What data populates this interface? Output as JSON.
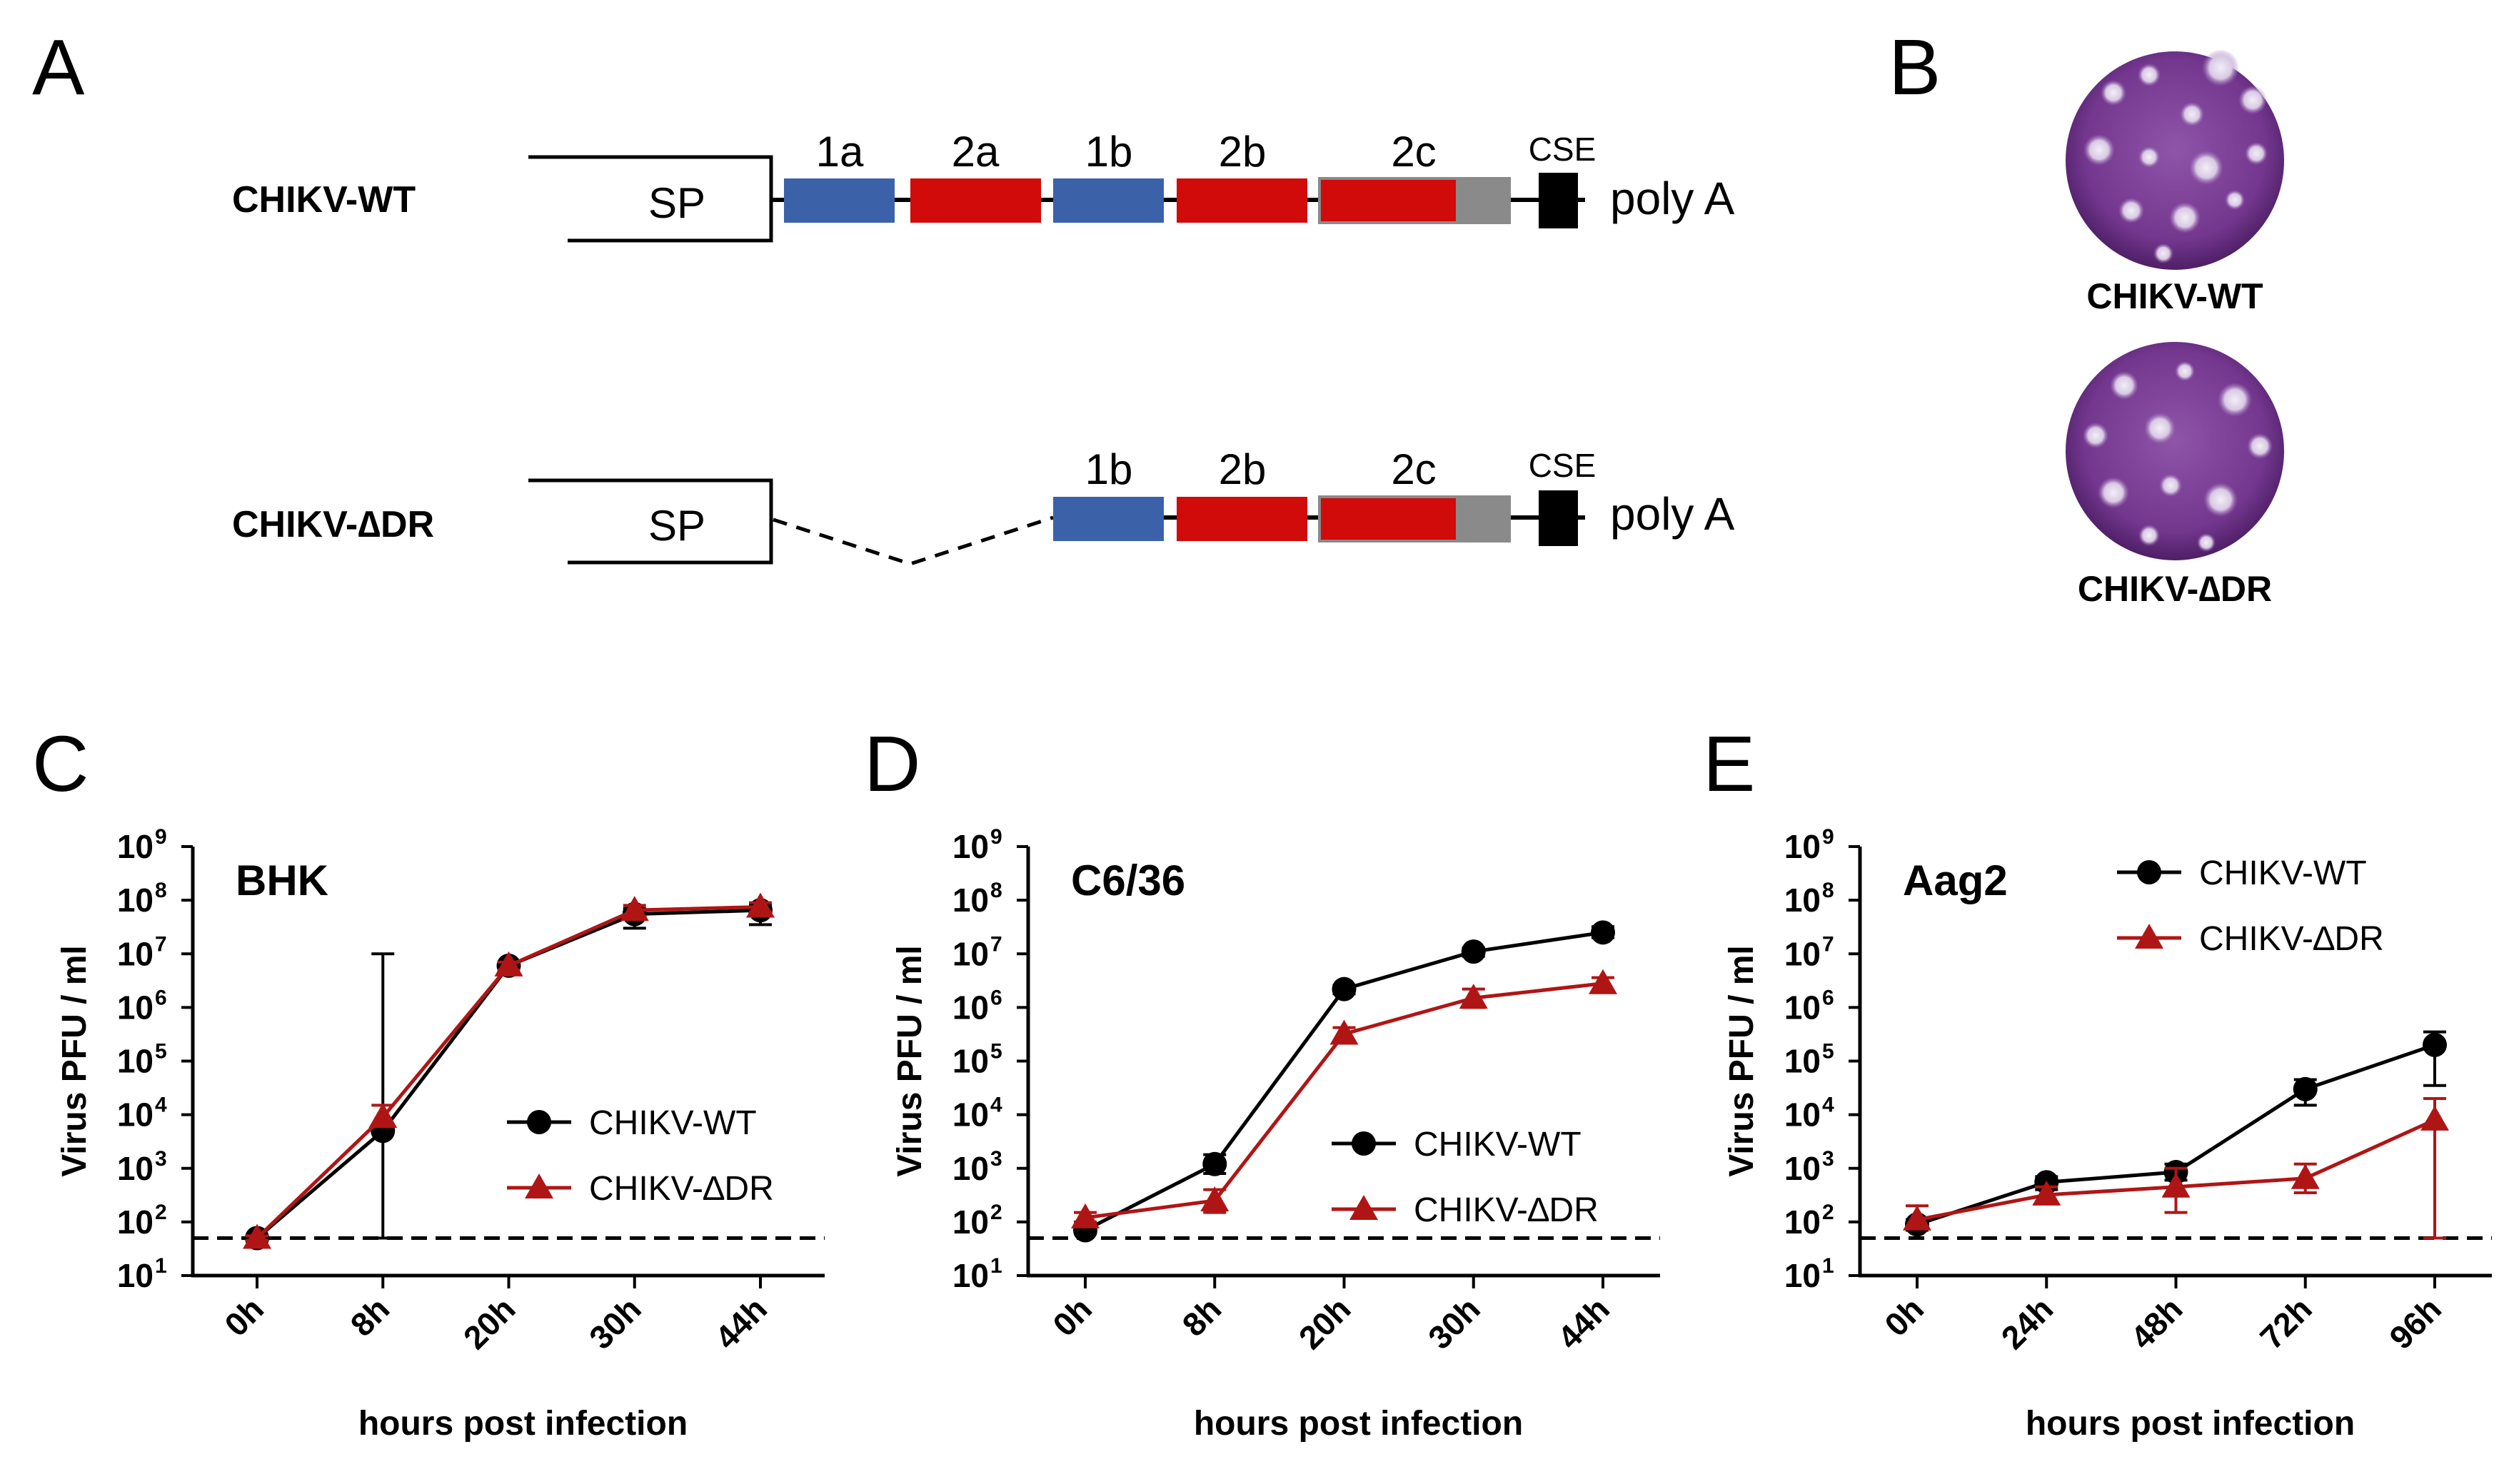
{
  "panels": {
    "A": {
      "letter": "A"
    },
    "B": {
      "letter": "B"
    },
    "C": {
      "letter": "C"
    },
    "D": {
      "letter": "D"
    },
    "E": {
      "letter": "E"
    }
  },
  "diagram": {
    "constructs": [
      {
        "label": "CHIKV-WT",
        "promoter": "SP",
        "elements": [
          {
            "label": "1a",
            "color": "#3b62a9"
          },
          {
            "label": "2a",
            "color": "#d10a0a"
          },
          {
            "label": "1b",
            "color": "#3b62a9"
          },
          {
            "label": "2b",
            "color": "#d10a0a"
          },
          {
            "label": "2c",
            "color": "#d10a0a"
          }
        ],
        "cse": "CSE",
        "tail": "poly A"
      },
      {
        "label": "CHIKV-∆DR",
        "promoter": "SP",
        "elements": [
          {
            "label": "1b",
            "color": "#3b62a9"
          },
          {
            "label": "2b",
            "color": "#d10a0a"
          },
          {
            "label": "2c",
            "color": "#d10a0a"
          }
        ],
        "cse": "CSE",
        "tail": "poly A"
      }
    ],
    "colors": {
      "blue": "#3b62a9",
      "red": "#d10a0a",
      "grey": "#8a8a8a",
      "black": "#000000"
    }
  },
  "plaques": {
    "labels": [
      "CHIKV-WT",
      "CHIKV-∆DR"
    ],
    "plate_color": "#7a3f96"
  },
  "chart_data": [
    {
      "type": "line",
      "title": "BHK",
      "xlabel": "hours post infection",
      "ylabel": "Virus PFU / ml",
      "categories": [
        "0h",
        "8h",
        "20h",
        "30h",
        "44h"
      ],
      "yscale": "log",
      "ylim": [
        10,
        1000000000
      ],
      "detection_limit": 50,
      "legend": "middle-right",
      "series": [
        {
          "name": "CHIKV-WT",
          "marker": "circle",
          "color": "#000000",
          "values": [
            50,
            5000,
            6000000,
            55000000,
            65000000
          ],
          "err_low": [
            45,
            50,
            5000000,
            30000000,
            35000000
          ],
          "err_high": [
            55,
            10000000,
            7000000,
            70000000,
            80000000
          ]
        },
        {
          "name": "CHIKV-∆DR",
          "marker": "triangle",
          "color": "#b01515",
          "values": [
            50,
            9000,
            6000000,
            65000000,
            75000000
          ],
          "err_low": [
            45,
            6000,
            5000000,
            50000000,
            60000000
          ],
          "err_high": [
            55,
            15000,
            7000000,
            80000000,
            90000000
          ]
        }
      ]
    },
    {
      "type": "line",
      "title": "C6/36",
      "xlabel": "hours post infection",
      "ylabel": "Virus PFU / ml",
      "categories": [
        "0h",
        "8h",
        "20h",
        "30h",
        "44h"
      ],
      "yscale": "log",
      "ylim": [
        10,
        1000000000
      ],
      "detection_limit": 50,
      "legend": "lower-right",
      "series": [
        {
          "name": "CHIKV-WT",
          "marker": "circle",
          "color": "#000000",
          "values": [
            70,
            1200,
            2200000,
            11000000,
            25000000
          ],
          "err_low": [
            60,
            800,
            1800000,
            9000000,
            20000000
          ],
          "err_high": [
            80,
            1800,
            2600000,
            13000000,
            32000000
          ]
        },
        {
          "name": "CHIKV-∆DR",
          "marker": "triangle",
          "color": "#b01515",
          "values": [
            120,
            250,
            320000,
            1500000,
            2800000
          ],
          "err_low": [
            100,
            150,
            220000,
            1000000,
            2000000
          ],
          "err_high": [
            150,
            400,
            420000,
            2200000,
            3600000
          ]
        }
      ]
    },
    {
      "type": "line",
      "title": "Aag2",
      "xlabel": "hours post infection",
      "ylabel": "Virus PFU / ml",
      "categories": [
        "0h",
        "24h",
        "48h",
        "72h",
        "96h"
      ],
      "yscale": "log",
      "ylim": [
        10,
        1000000000
      ],
      "detection_limit": 50,
      "legend": "top-right",
      "series": [
        {
          "name": "CHIKV-WT",
          "marker": "circle",
          "color": "#000000",
          "values": [
            90,
            550,
            850,
            30000,
            200000
          ],
          "err_low": [
            70,
            400,
            600,
            15000,
            35000
          ],
          "err_high": [
            110,
            700,
            1200,
            45000,
            350000
          ]
        },
        {
          "name": "CHIKV-∆DR",
          "marker": "triangle",
          "color": "#b01515",
          "values": [
            110,
            320,
            450,
            650,
            8000
          ],
          "err_low": [
            80,
            220,
            150,
            350,
            50
          ],
          "err_high": [
            200,
            450,
            1000,
            1200,
            20000
          ]
        }
      ]
    }
  ]
}
